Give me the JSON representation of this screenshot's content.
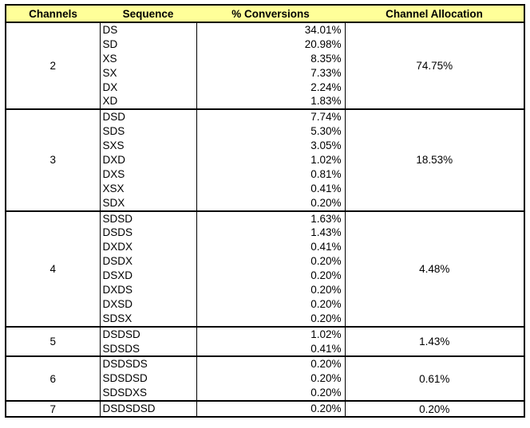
{
  "page": {
    "background": "#ffffff",
    "border_color": "#000000"
  },
  "chart_data": {
    "type": "table",
    "title": "",
    "header_bg": "#FFFF99",
    "columns": [
      "Channels",
      "Sequence",
      "% Conversions",
      "Channel Allocation"
    ],
    "groups": [
      {
        "channels": "2",
        "allocation": "74.75%",
        "sequences": [
          "DS",
          "SD",
          "XS",
          "SX",
          "DX",
          "XD"
        ],
        "conversions": [
          "34.01%",
          "20.98%",
          "8.35%",
          "7.33%",
          "2.24%",
          "1.83%"
        ]
      },
      {
        "channels": "3",
        "allocation": "18.53%",
        "sequences": [
          "DSD",
          "SDS",
          "SXS",
          "DXD",
          "DXS",
          "XSX",
          "SDX"
        ],
        "conversions": [
          "7.74%",
          "5.30%",
          "3.05%",
          "1.02%",
          "0.81%",
          "0.41%",
          "0.20%"
        ]
      },
      {
        "channels": "4",
        "allocation": "4.48%",
        "sequences": [
          "SDSD",
          "DSDS",
          "DXDX",
          "DSDX",
          "DSXD",
          "DXDS",
          "DXSD",
          "SDSX"
        ],
        "conversions": [
          "1.63%",
          "1.43%",
          "0.41%",
          "0.20%",
          "0.20%",
          "0.20%",
          "0.20%",
          "0.20%"
        ]
      },
      {
        "channels": "5",
        "allocation": "1.43%",
        "sequences": [
          "DSDSD",
          "SDSDS"
        ],
        "conversions": [
          "1.02%",
          "0.41%"
        ]
      },
      {
        "channels": "6",
        "allocation": "0.61%",
        "sequences": [
          "DSDSDS",
          "SDSDSD",
          "SDSDXS"
        ],
        "conversions": [
          "0.20%",
          "0.20%",
          "0.20%"
        ]
      },
      {
        "channels": "7",
        "allocation": "0.20%",
        "sequences": [
          "DSDSDSD"
        ],
        "conversions": [
          "0.20%"
        ]
      }
    ]
  }
}
